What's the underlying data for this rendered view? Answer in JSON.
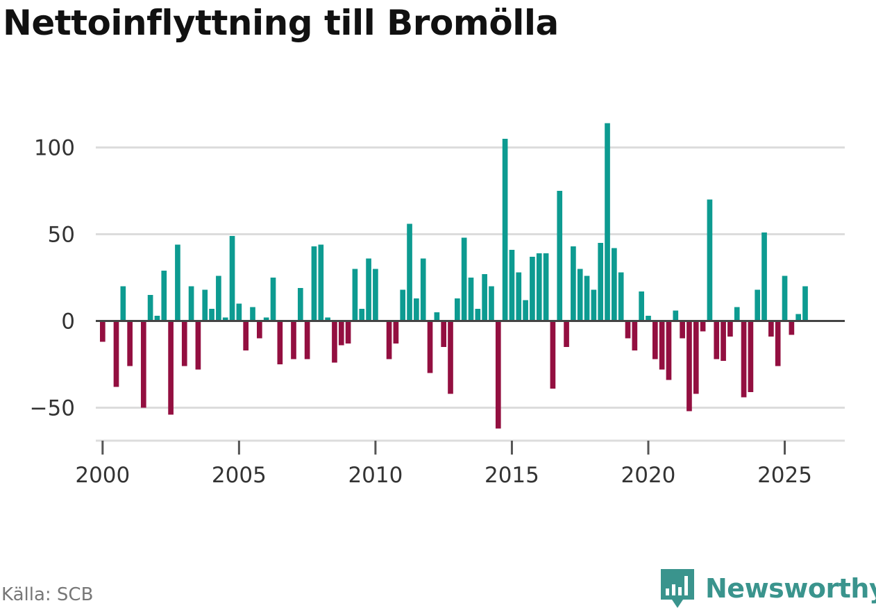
{
  "chart_data": {
    "type": "bar",
    "title": "Nettoinflyttning till Bromölla",
    "source": "Källa: SCB",
    "brand": "Newsworthy",
    "xlabel": "",
    "ylabel": "",
    "xlim": [
      1999.75,
      2027.2
    ],
    "ylim": [
      -65,
      115
    ],
    "yticks": [
      -50,
      0,
      50,
      100
    ],
    "ytick_labels": [
      "−50",
      "0",
      "50",
      "100"
    ],
    "xticks": [
      2000,
      2005,
      2010,
      2015,
      2020,
      2025
    ],
    "xtick_labels": [
      "2000",
      "2005",
      "2010",
      "2015",
      "2020",
      "2025"
    ],
    "colors": {
      "positive": "#0d9b91",
      "negative": "#930f40",
      "grid": "#dcdcdc",
      "zero": "#444444",
      "brand": "#3a948d"
    },
    "x": [
      2000.0,
      2000.25,
      2000.5,
      2000.75,
      2001.0,
      2001.25,
      2001.5,
      2001.75,
      2002.0,
      2002.25,
      2002.5,
      2002.75,
      2003.0,
      2003.25,
      2003.5,
      2003.75,
      2004.0,
      2004.25,
      2004.5,
      2004.75,
      2005.0,
      2005.25,
      2005.5,
      2005.75,
      2006.0,
      2006.25,
      2006.5,
      2006.75,
      2007.0,
      2007.25,
      2007.5,
      2007.75,
      2008.0,
      2008.25,
      2008.5,
      2008.75,
      2009.0,
      2009.25,
      2009.5,
      2009.75,
      2010.0,
      2010.25,
      2010.5,
      2010.75,
      2011.0,
      2011.25,
      2011.5,
      2011.75,
      2012.0,
      2012.25,
      2012.5,
      2012.75,
      2013.0,
      2013.25,
      2013.5,
      2013.75,
      2014.0,
      2014.25,
      2014.5,
      2014.75,
      2015.0,
      2015.25,
      2015.5,
      2015.75,
      2016.0,
      2016.25,
      2016.5,
      2016.75,
      2017.0,
      2017.25,
      2017.5,
      2017.75,
      2018.0,
      2018.25,
      2018.5,
      2018.75,
      2019.0,
      2019.25,
      2019.5,
      2019.75,
      2020.0,
      2020.25,
      2020.5,
      2020.75,
      2021.0,
      2021.25,
      2021.5,
      2021.75,
      2022.0,
      2022.25,
      2022.5,
      2022.75,
      2023.0,
      2023.25,
      2023.5,
      2023.75,
      2024.0,
      2024.25,
      2024.5,
      2024.75,
      2025.0,
      2025.25,
      2025.5,
      2025.75,
      2026.0
    ],
    "values": [
      -12,
      0,
      -38,
      20,
      -26,
      0,
      -50,
      15,
      3,
      29,
      -54,
      44,
      -26,
      20,
      -28,
      18,
      7,
      26,
      2,
      49,
      10,
      -17,
      8,
      -10,
      2,
      25,
      -25,
      0,
      -22,
      19,
      -22,
      43,
      44,
      2,
      -24,
      -14,
      -13,
      30,
      7,
      36,
      30,
      0,
      -22,
      -13,
      18,
      56,
      13,
      36,
      -30,
      5,
      -15,
      -42,
      13,
      48,
      25,
      7,
      27,
      20,
      -62,
      105,
      41,
      28,
      12,
      37,
      39,
      39,
      -39,
      75,
      -15,
      43,
      30,
      26,
      18,
      45,
      114,
      42,
      28,
      -10,
      -17,
      17,
      3,
      -22,
      -28,
      -34,
      6,
      -10,
      -52,
      -42,
      -6,
      70,
      -22,
      -23,
      -9,
      8,
      -44,
      -41,
      18,
      51,
      -9,
      -26,
      26,
      -8,
      4,
      20,
      0
    ]
  }
}
